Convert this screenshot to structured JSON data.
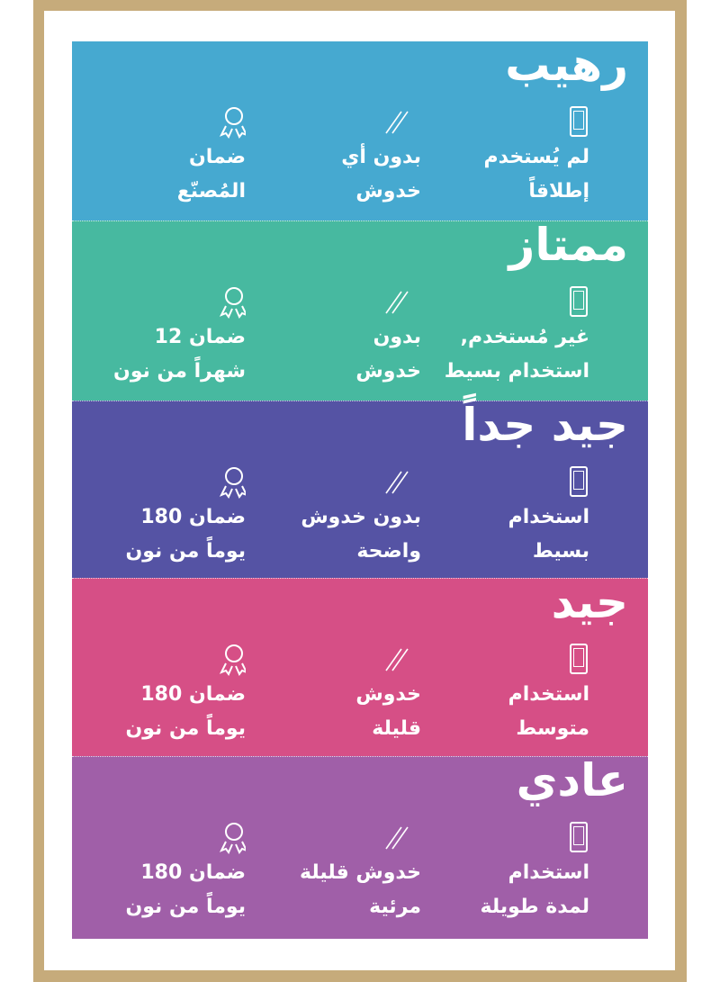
{
  "colors": {
    "frame": "#c6ab7b",
    "sections": [
      "#46a9d0",
      "#47b9a0",
      "#5553a4",
      "#d64f86",
      "#a05fa8"
    ]
  },
  "sections": [
    {
      "title": "رهيب",
      "usage": "لم يُستخدم\nإطلاقاً",
      "scratches": "بدون أي\nخدوش",
      "warranty": "ضمان\nالمُصنّع"
    },
    {
      "title": "ممتاز",
      "usage": "غير مُستخدم,\nاستخدام بسيط",
      "scratches": "بدون\nخدوش",
      "warranty": "ضمان 12\nشهراً من نون"
    },
    {
      "title": "جيد جداً",
      "usage": "استخدام\nبسيط",
      "scratches": "بدون خدوش\nواضحة",
      "warranty": "ضمان 180\nيوماً من نون"
    },
    {
      "title": "جيد",
      "usage": "استخدام\nمتوسط",
      "scratches": "خدوش\nقليلة",
      "warranty": "ضمان 180\nيوماً من نون"
    },
    {
      "title": "عادي",
      "usage": "استخدام\nلمدة طويلة",
      "scratches": "خدوش قليلة\nمرئية",
      "warranty": "ضمان 180\nيوماً من نون"
    }
  ],
  "icons": {
    "usage": "phone-icon",
    "scratches": "scratch-icon",
    "warranty": "medal-icon"
  }
}
